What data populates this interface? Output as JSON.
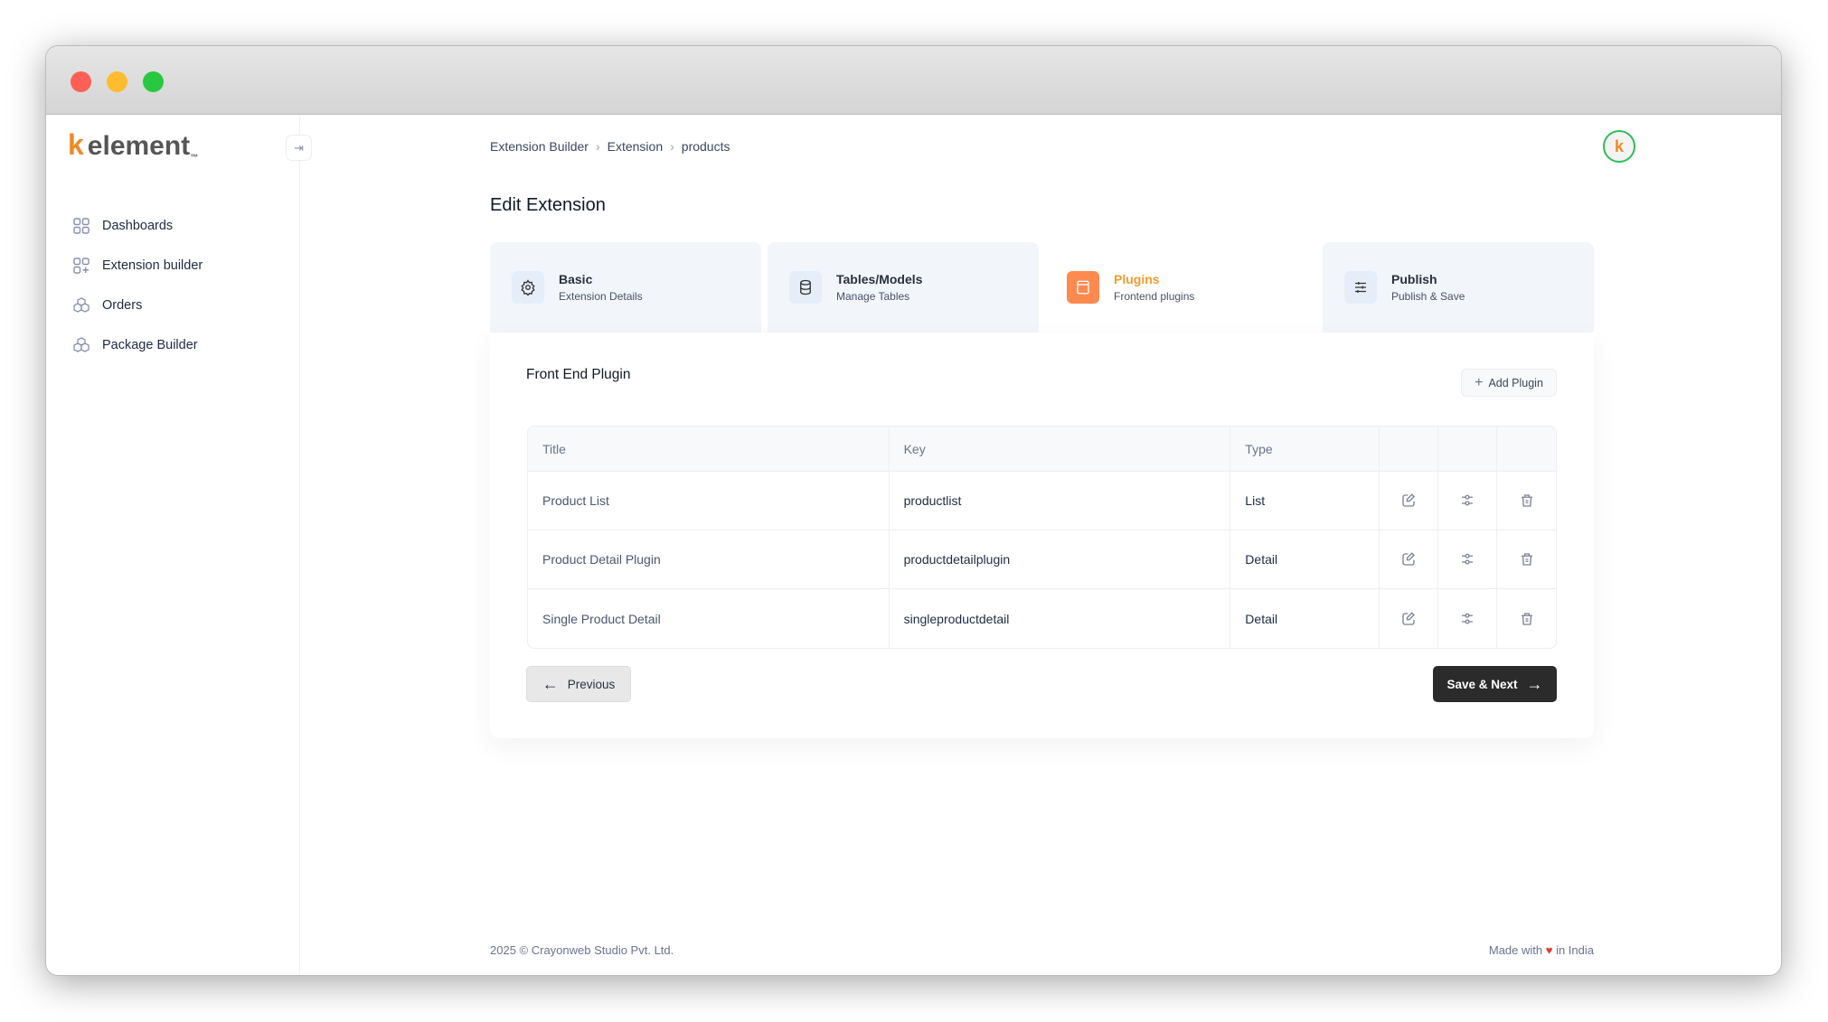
{
  "window": {
    "traffic_lights": [
      "#fe5f57",
      "#febc2e",
      "#28c840"
    ]
  },
  "logo": {
    "mark": "k",
    "text": "element",
    "tm": "™"
  },
  "sidebar": {
    "items": [
      {
        "label": "Dashboards",
        "icon": "grid-icon"
      },
      {
        "label": "Extension builder",
        "icon": "grid-plus-icon"
      },
      {
        "label": "Orders",
        "icon": "boxes-icon"
      },
      {
        "label": "Package Builder",
        "icon": "boxes-icon"
      }
    ]
  },
  "breadcrumb": [
    "Extension Builder",
    "Extension",
    "products"
  ],
  "avatar": {
    "initial": "k"
  },
  "page_title": "Edit Extension",
  "tabs": [
    {
      "title": "Basic",
      "subtitle": "Extension Details",
      "icon": "gear-icon"
    },
    {
      "title": "Tables/Models",
      "subtitle": "Manage Tables",
      "icon": "database-icon"
    },
    {
      "title": "Plugins",
      "subtitle": "Frontend plugins",
      "icon": "window-icon",
      "active": true
    },
    {
      "title": "Publish",
      "subtitle": "Publish & Save",
      "icon": "sliders-icon"
    }
  ],
  "section": {
    "title": "Front End Plugin",
    "add_label": "Add Plugin"
  },
  "table": {
    "columns": [
      "Title",
      "Key",
      "Type"
    ],
    "rows": [
      {
        "title": "Product List",
        "key": "productlist",
        "type": "List"
      },
      {
        "title": "Product Detail Plugin",
        "key": "productdetailplugin",
        "type": "Detail"
      },
      {
        "title": "Single Product Detail",
        "key": "singleproductdetail",
        "type": "Detail"
      }
    ]
  },
  "buttons": {
    "previous": "Previous",
    "next": "Save & Next"
  },
  "footer": {
    "copyright": "2025 ©  Crayonweb Studio Pvt. Ltd.",
    "made_with": "Made with",
    "heart": "♥",
    "in_india": "in India"
  },
  "colors": {
    "accent": "#f59a2c",
    "active_icon": "#ff8a50",
    "primary_button": "#2b2b2b"
  }
}
